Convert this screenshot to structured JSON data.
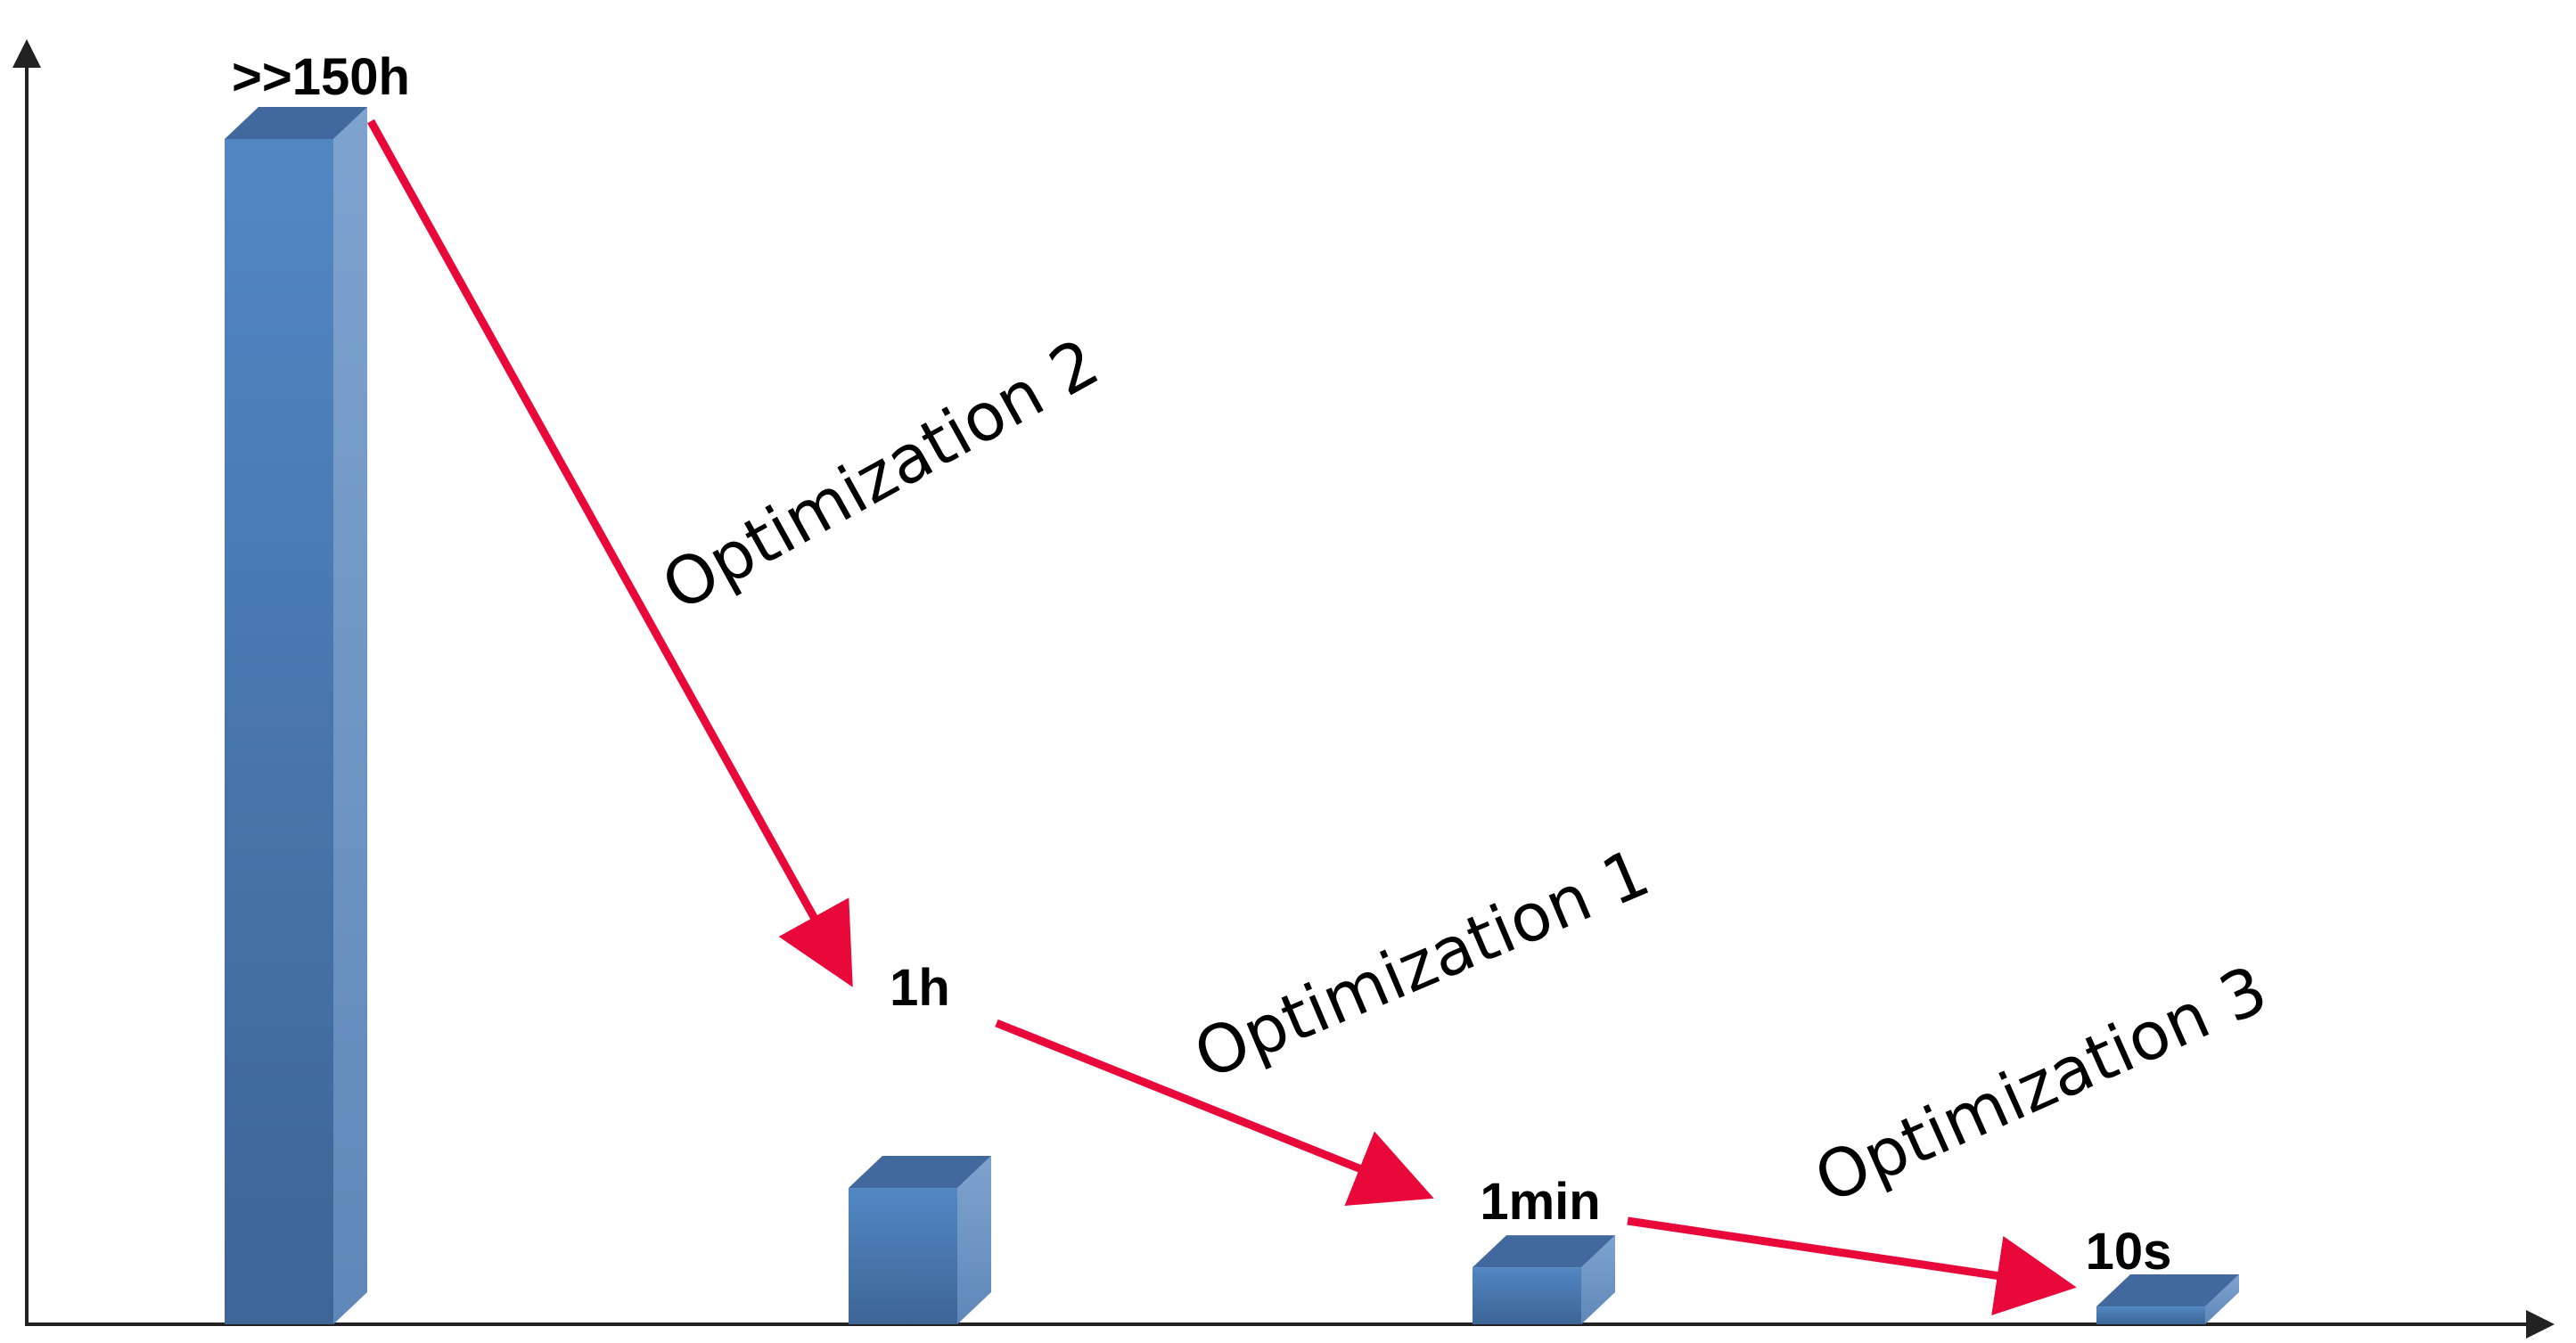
{
  "chart_data": {
    "type": "bar",
    "title": "",
    "xlabel": "",
    "ylabel": "",
    "grid": false,
    "legend": "none",
    "bar_style": "3d",
    "categories": [
      "",
      "",
      "",
      ""
    ],
    "data_labels": [
      ">>150h",
      "1h",
      "1min",
      "10s"
    ],
    "values": [
      1000,
      115,
      48,
      15
    ],
    "ylim": [
      0,
      1000
    ],
    "annotations": [
      {
        "from": 0,
        "to": 1,
        "label": "Optimization 2"
      },
      {
        "from": 1,
        "to": 2,
        "label": "Optimization 1"
      },
      {
        "from": 2,
        "to": 3,
        "label": "Optimization 3"
      }
    ],
    "colors": {
      "bar_front_top": "#5287c3",
      "bar_front_bottom": "#3d6596",
      "bar_side": "#7fa3cf",
      "bar_top": "#42699e",
      "arrow": "#e8093a",
      "axis": "#222222"
    }
  }
}
